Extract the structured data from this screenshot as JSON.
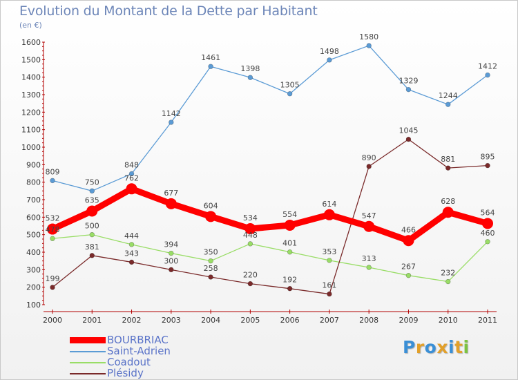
{
  "header": {
    "title": "Evolution du Montant de la Dette par Habitant",
    "unit": "(en €)"
  },
  "logo": {
    "text": "Proxiti",
    "letters": [
      {
        "ch": "P",
        "color": "#3a8fd6"
      },
      {
        "ch": "r",
        "color": "#e2a02a"
      },
      {
        "ch": "o",
        "color": "#3a8fd6"
      },
      {
        "ch": "x",
        "color": "#e2a02a"
      },
      {
        "ch": "i",
        "color": "#3a8fd6"
      },
      {
        "ch": "t",
        "color": "#e2a02a"
      },
      {
        "ch": "i",
        "color": "#7cc242"
      }
    ]
  },
  "chart_data": {
    "type": "line",
    "title": "Evolution du Montant de la Dette par Habitant",
    "ylabel": "(en €)",
    "xlabel": "",
    "x": [
      "2000",
      "2001",
      "2002",
      "2003",
      "2004",
      "2005",
      "2006",
      "2007",
      "2008",
      "2009",
      "2010",
      "2011"
    ],
    "ylim": [
      100,
      1600
    ],
    "yticks": [
      100,
      200,
      300,
      400,
      500,
      600,
      700,
      800,
      900,
      1000,
      1100,
      1200,
      1300,
      1400,
      1500,
      1600
    ],
    "grid": false,
    "legend_position": "bottom-left",
    "series": [
      {
        "name": "BOURBRIAC",
        "color": "#ff0000",
        "width": "thick",
        "values": [
          532,
          635,
          762,
          677,
          604,
          534,
          554,
          614,
          547,
          466,
          628,
          564
        ]
      },
      {
        "name": "Saint-Adrien",
        "color": "#5b9bd5",
        "width": "thin",
        "values": [
          809,
          750,
          848,
          1142,
          1461,
          1398,
          1305,
          1498,
          1580,
          1329,
          1244,
          1412
        ]
      },
      {
        "name": "Coadout",
        "color": "#99dd66",
        "width": "thin",
        "values": [
          478,
          500,
          444,
          394,
          350,
          448,
          401,
          353,
          313,
          267,
          232,
          460
        ]
      },
      {
        "name": "Plésidy",
        "color": "#7a2a2a",
        "width": "thin",
        "values": [
          199,
          381,
          343,
          300,
          258,
          220,
          192,
          161,
          890,
          1045,
          881,
          895
        ]
      }
    ]
  }
}
